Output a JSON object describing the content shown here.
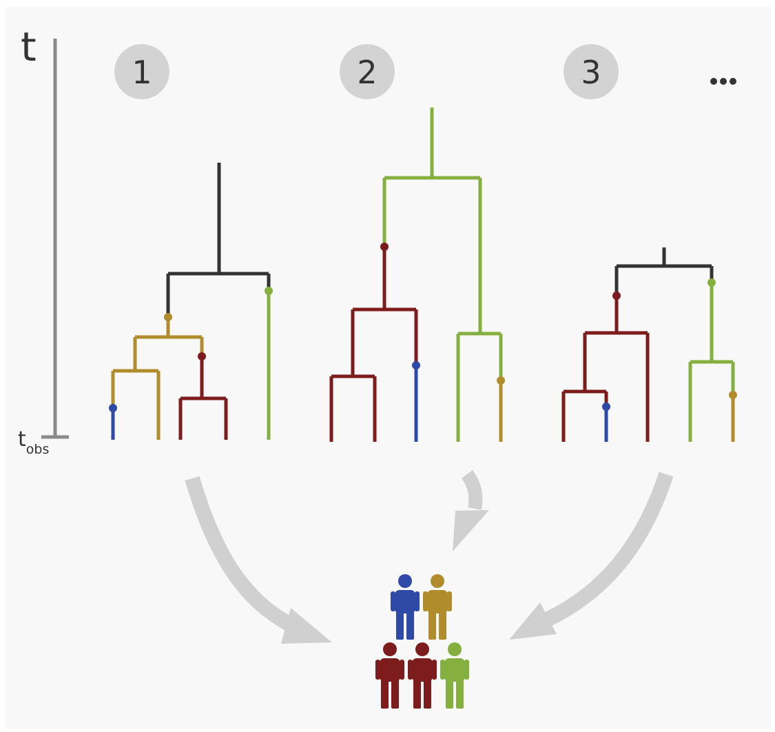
{
  "axis": {
    "label": "t",
    "bottom_label_main": "t",
    "bottom_label_sub": "obs"
  },
  "trees": [
    {
      "label": "1"
    },
    {
      "label": "2"
    },
    {
      "label": "3"
    }
  ],
  "more_label": "...",
  "colors": {
    "ancestral": "#333333",
    "gold": "#b08c2c",
    "red": "#7d1c1c",
    "blue": "#2e4aa6",
    "green": "#85b040",
    "badge": "#d3d3d3",
    "arrow": "#d0d0d0",
    "axis": "#8a8a8a",
    "background": "#f8f8f8"
  },
  "population": {
    "front_row": [
      "red",
      "red",
      "green"
    ],
    "back_row": [
      "blue",
      "gold"
    ]
  }
}
